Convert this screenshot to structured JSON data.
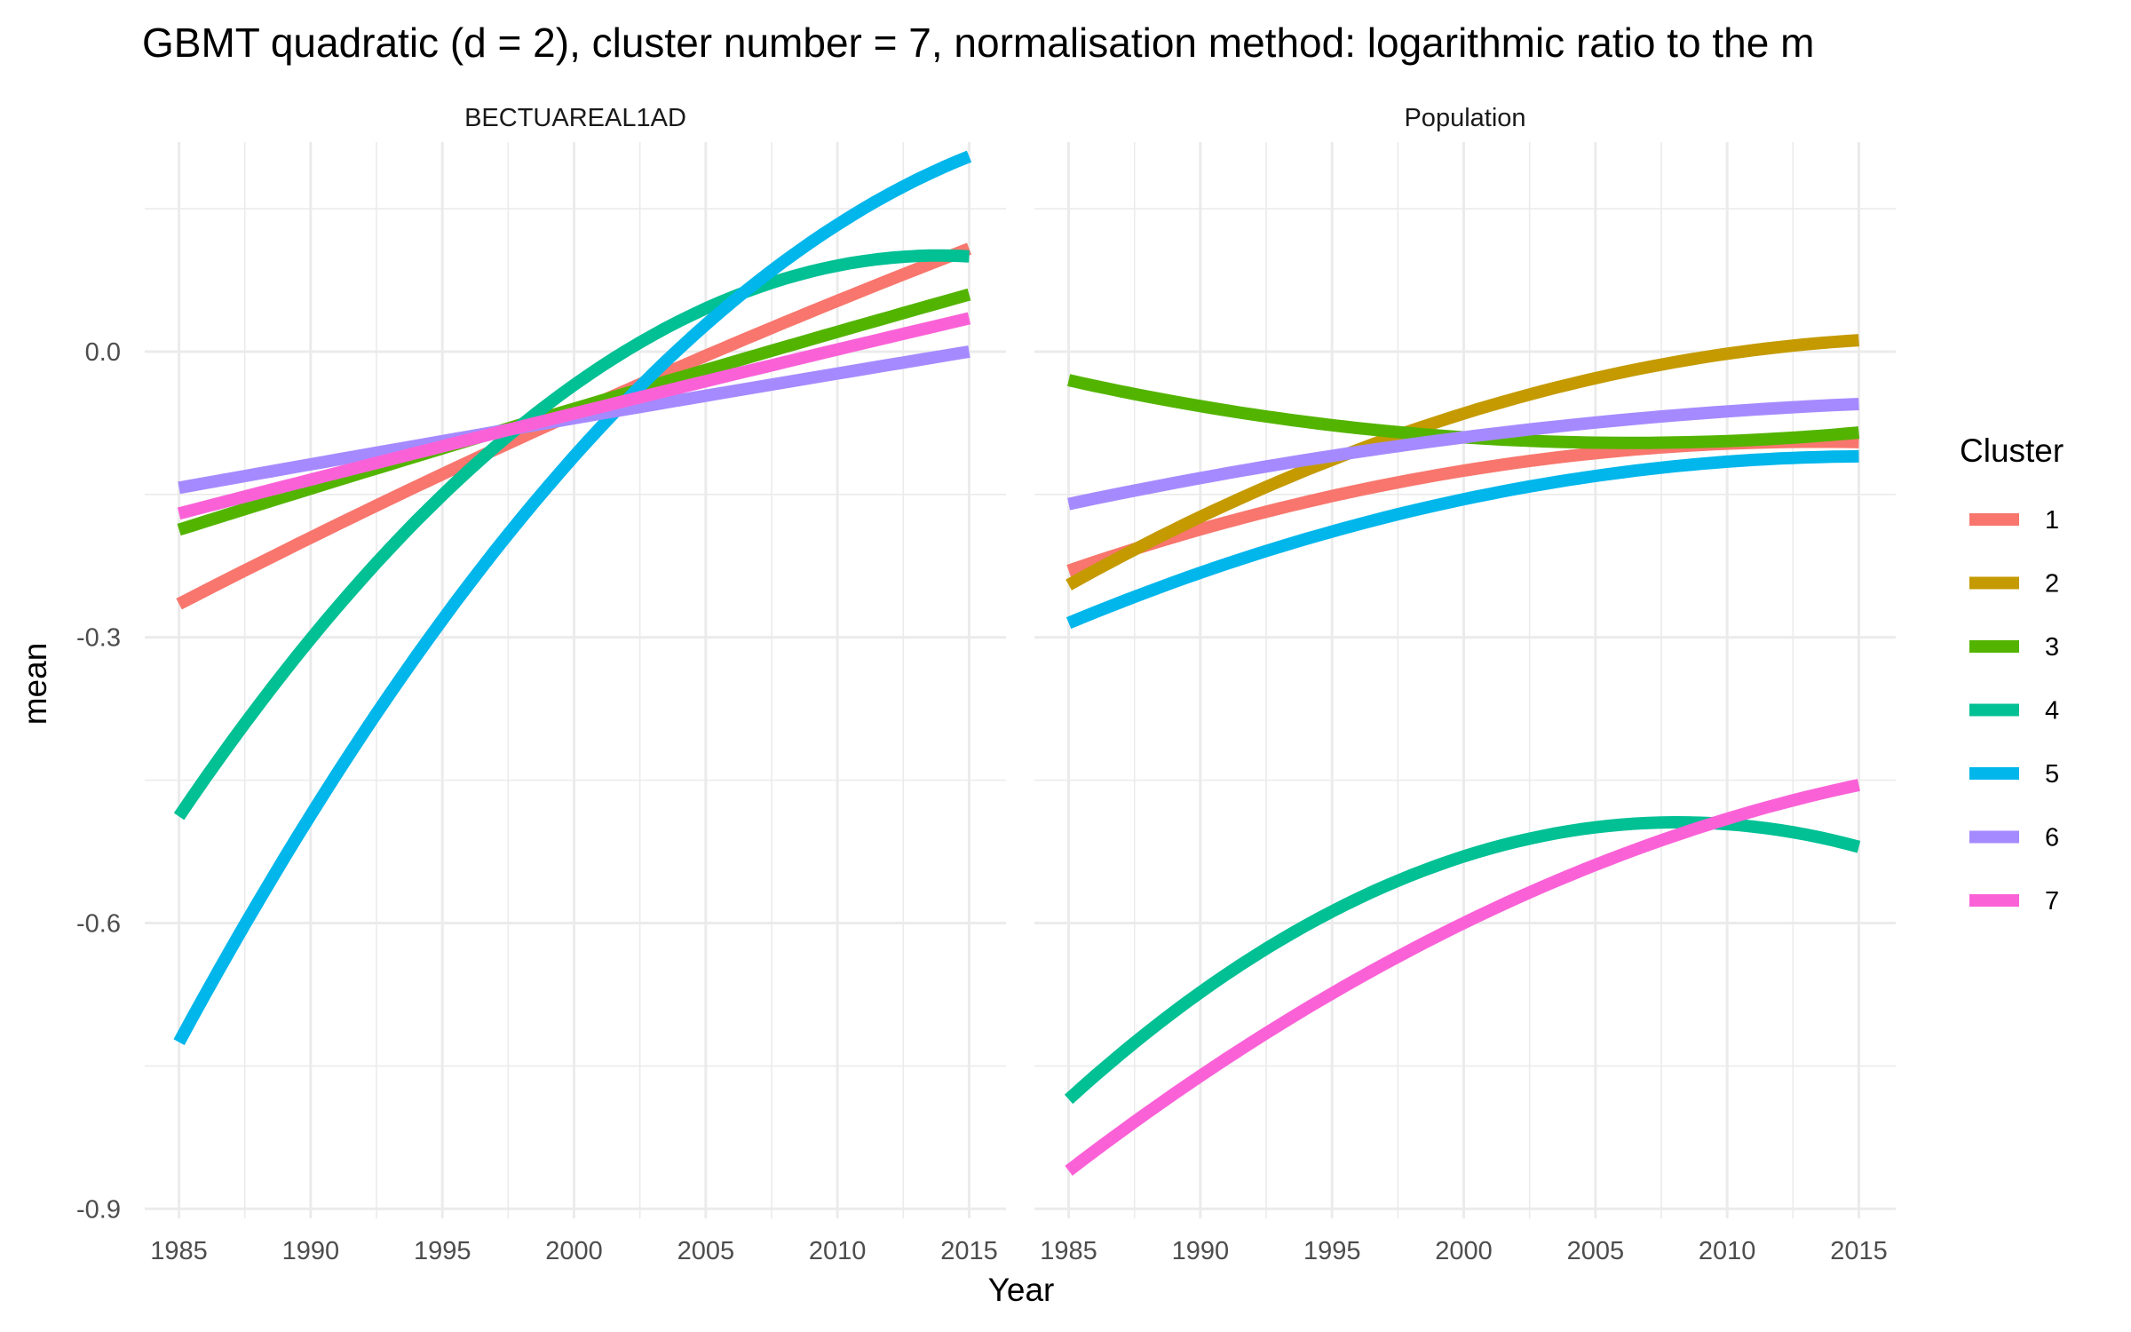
{
  "chart_data": {
    "type": "line",
    "title": "GBMT quadratic (d = 2), cluster number = 7, normalisation method: logarithmic ratio to the m",
    "xlabel": "Year",
    "ylabel": "mean",
    "xlim": [
      1983.7,
      2016.4
    ],
    "ylim": [
      -0.91,
      0.22
    ],
    "x_ticks": [
      1985,
      1990,
      1995,
      2000,
      2005,
      2010,
      2015
    ],
    "y_ticks": [
      -0.9,
      -0.6,
      -0.3,
      0.0
    ],
    "y_tick_labels": [
      "-0.9",
      "-0.6",
      "-0.3",
      "0.0"
    ],
    "grid": true,
    "legend": {
      "title": "Cluster",
      "position": "right"
    },
    "clusters": [
      {
        "name": "1",
        "color": "#F8766D"
      },
      {
        "name": "2",
        "color": "#C49A00"
      },
      {
        "name": "3",
        "color": "#53B400"
      },
      {
        "name": "4",
        "color": "#00C094"
      },
      {
        "name": "5",
        "color": "#00B6EB"
      },
      {
        "name": "6",
        "color": "#A58AFF"
      },
      {
        "name": "7",
        "color": "#FB61D7"
      }
    ],
    "x": [
      1985,
      2000,
      2015
    ],
    "panels": [
      {
        "strip": "BECTUAREAL1AD",
        "series": [
          {
            "name": "1",
            "values": [
              -0.265,
              -0.065,
              0.108
            ]
          },
          {
            "name": "3",
            "values": [
              -0.187,
              -0.06,
              0.06
            ]
          },
          {
            "name": "4",
            "values": [
              -0.488,
              -0.035,
              0.1
            ]
          },
          {
            "name": "5",
            "values": [
              -0.725,
              -0.11,
              0.205
            ]
          },
          {
            "name": "6",
            "values": [
              -0.143,
              -0.07,
              0.0
            ]
          },
          {
            "name": "7",
            "values": [
              -0.17,
              -0.065,
              0.035
            ]
          }
        ]
      },
      {
        "strip": "Population",
        "series": [
          {
            "name": "1",
            "values": [
              -0.23,
              -0.125,
              -0.095
            ]
          },
          {
            "name": "2",
            "values": [
              -0.245,
              -0.065,
              0.012
            ]
          },
          {
            "name": "3",
            "values": [
              -0.03,
              -0.09,
              -0.085
            ]
          },
          {
            "name": "4",
            "values": [
              -0.785,
              -0.53,
              -0.52
            ]
          },
          {
            "name": "5",
            "values": [
              -0.285,
              -0.155,
              -0.11
            ]
          },
          {
            "name": "6",
            "values": [
              -0.16,
              -0.09,
              -0.055
            ]
          },
          {
            "name": "7",
            "values": [
              -0.86,
              -0.6,
              -0.455
            ]
          }
        ]
      }
    ]
  }
}
